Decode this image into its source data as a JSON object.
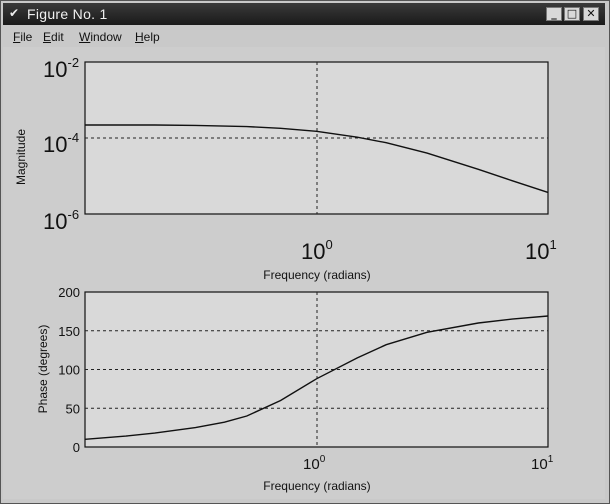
{
  "window": {
    "title": "Figure No. 1",
    "icon": "matlab-figure-icon",
    "controls": {
      "minimize": "_",
      "maximize": "□",
      "close": "✕"
    }
  },
  "menu": {
    "items": [
      "File",
      "Edit",
      "Window",
      "Help"
    ]
  },
  "chart_data": [
    {
      "type": "line",
      "title": "",
      "xlabel": "Frequency (radians)",
      "ylabel": "Magnitude",
      "xscale": "log",
      "yscale": "log",
      "xlim": [
        0.1,
        10
      ],
      "ylim": [
        1e-06,
        0.01
      ],
      "x_ticks": [
        "10^0",
        "10^1"
      ],
      "y_ticks": [
        "10^-2",
        "10^-4",
        "10^-6"
      ],
      "grid": "on (dashed, at 10^0 and 10^-4)",
      "series": [
        {
          "x": [
            0.1,
            0.2,
            0.3,
            0.5,
            0.7,
            1.0,
            1.5,
            2.0,
            3.0,
            5.0,
            7.0,
            10.0
          ],
          "y": [
            0.00022,
            0.00022,
            0.000215,
            0.0002,
            0.00018,
            0.00015,
            0.000105,
            7.5e-05,
            4e-05,
            1.5e-05,
            7.5e-06,
            3.7e-06
          ]
        }
      ]
    },
    {
      "type": "line",
      "title": "",
      "xlabel": "Frequency (radians)",
      "ylabel": "Phase (degrees)",
      "xscale": "log",
      "xlim": [
        0.1,
        10
      ],
      "ylim": [
        0,
        200
      ],
      "x_ticks": [
        "10^0",
        "10^1"
      ],
      "y_ticks": [
        "0",
        "50",
        "100",
        "150",
        "200"
      ],
      "grid": "on (dashed)",
      "series": [
        {
          "x": [
            0.1,
            0.15,
            0.2,
            0.3,
            0.4,
            0.5,
            0.7,
            1.0,
            1.5,
            2.0,
            3.0,
            5.0,
            7.0,
            10.0
          ],
          "y": [
            10,
            14,
            18,
            25,
            32,
            40,
            60,
            88,
            115,
            132,
            148,
            160,
            165,
            169
          ]
        }
      ]
    }
  ]
}
